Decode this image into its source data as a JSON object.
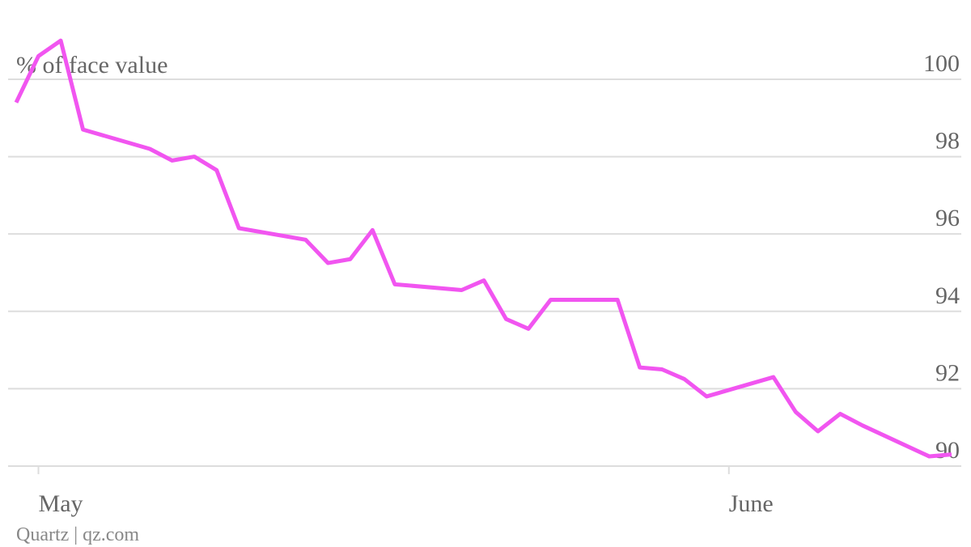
{
  "chart_data": {
    "type": "line",
    "y_label": "% of face value",
    "source": "Quartz | qz.com",
    "x": [
      -1,
      0,
      1,
      2,
      5,
      6,
      7,
      8,
      9,
      12,
      13,
      14,
      15,
      16,
      19,
      20,
      21,
      22,
      23,
      26,
      27,
      28,
      29,
      30,
      33,
      34,
      35,
      36,
      37,
      40,
      41
    ],
    "series": [
      {
        "color": "#f155f0",
        "values": [
          99.4,
          100.6,
          101.0,
          98.7,
          98.2,
          97.9,
          98.0,
          97.65,
          96.15,
          95.85,
          95.25,
          95.35,
          96.1,
          94.7,
          94.55,
          94.8,
          93.8,
          93.55,
          94.3,
          94.3,
          92.55,
          92.5,
          92.25,
          91.8,
          92.3,
          91.4,
          90.9,
          91.35,
          91.05,
          90.25,
          90.3
        ]
      }
    ],
    "xlim": [
      -1,
      41
    ],
    "xticks": [
      {
        "value": 0,
        "label": "May"
      },
      {
        "value": 31,
        "label": "June"
      }
    ],
    "ylim": [
      90,
      101.2
    ],
    "yticks": [
      90,
      92,
      94,
      96,
      98,
      100
    ],
    "grid": true
  }
}
